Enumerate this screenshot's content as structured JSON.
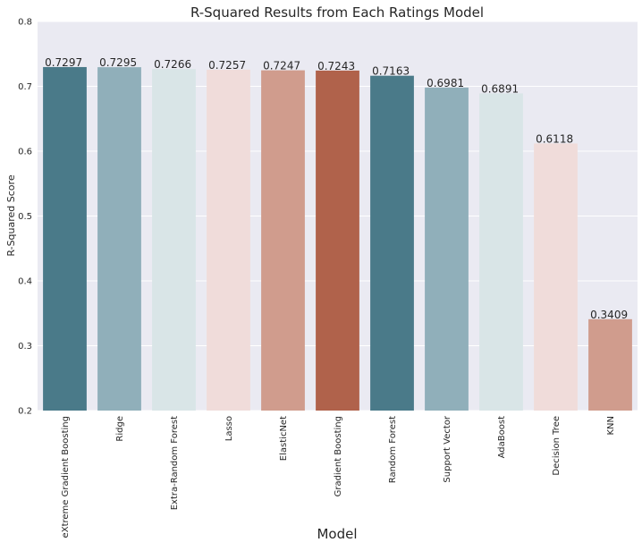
{
  "chart_data": {
    "type": "bar",
    "title": "R-Squared Results from Each Ratings Model",
    "xlabel": "Model",
    "ylabel": "R-Squared Score",
    "ylim": [
      0.2,
      0.8
    ],
    "yticks": [
      "0.2",
      "0.3",
      "0.4",
      "0.5",
      "0.6",
      "0.7",
      "0.8"
    ],
    "grid": true,
    "categories": [
      "eXtreme Gradient Boosting",
      "Ridge",
      "Extra-Random Forest",
      "Lasso",
      "ElasticNet",
      "Gradient Boosting",
      "Random Forest",
      "Support Vector",
      "AdaBoost",
      "Decision Tree",
      "KNN"
    ],
    "values": [
      0.7297,
      0.7295,
      0.7266,
      0.7257,
      0.7247,
      0.7243,
      0.7163,
      0.6981,
      0.6891,
      0.6118,
      0.3409
    ],
    "value_labels": [
      "0.7297",
      "0.7295",
      "0.7266",
      "0.7257",
      "0.7247",
      "0.7243",
      "0.7163",
      "0.6981",
      "0.6891",
      "0.6118",
      "0.3409"
    ],
    "colors": [
      "#4a7a89",
      "#90afba",
      "#d9e5e7",
      "#f0dcda",
      "#d09c8d",
      "#b0624b",
      "#4a7a89",
      "#90afba",
      "#d9e5e7",
      "#f0dcda",
      "#d09c8d"
    ],
    "plot_background": "#eaeaf2",
    "grid_color": "#ffffff"
  }
}
